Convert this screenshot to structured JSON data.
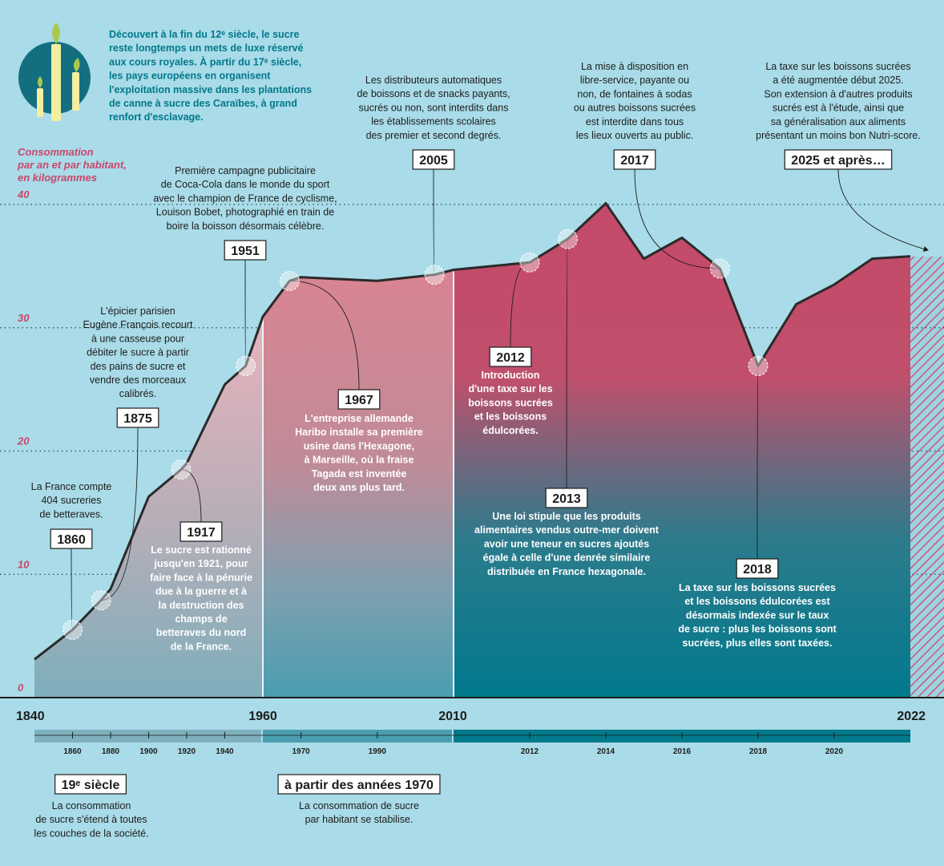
{
  "intro": [
    "Découvert à la fin du 12ᵉ siècle, le sucre",
    "reste longtemps un mets de luxe réservé",
    "aux cours royales. À partir du 17ᵉ siècle,",
    "les pays européens en organisent",
    "l'exploitation massive dans les plantations",
    "de canne à sucre des Caraïbes, à grand",
    "renfort d'esclavage."
  ],
  "chart_data": {
    "type": "line",
    "ylabel": [
      "Consommation",
      "par an et par habitant,",
      "en kilogrammes"
    ],
    "x": [
      1840,
      1860,
      1875,
      1880,
      1900,
      1917,
      1920,
      1940,
      1951,
      1960,
      1967,
      1970,
      1990,
      2005,
      2010,
      2011,
      2012,
      2013,
      2014,
      2015,
      2016,
      2017,
      2018,
      2019,
      2020,
      2021,
      2022
    ],
    "values": [
      3.1,
      5.5,
      7.9,
      8.8,
      16.3,
      18.5,
      19,
      25.4,
      26.9,
      30.9,
      33.8,
      34.1,
      33.8,
      34.3,
      34.7,
      35,
      35.3,
      37.2,
      40.1,
      35.6,
      37.3,
      34.8,
      26.9,
      31.9,
      33.5,
      35.6,
      35.8
    ],
    "color": "#2a2a2a",
    "ylim": [
      0,
      40
    ],
    "yticks": [
      0,
      10,
      20,
      30,
      40
    ],
    "grid": true,
    "xticks": [
      1840,
      1960,
      2010,
      2022
    ],
    "minor_xticks": [
      1860,
      1880,
      1900,
      1920,
      1940,
      1970,
      1990,
      2012,
      2014,
      2016,
      2018,
      2020
    ],
    "annotations": [
      {
        "year": 1860,
        "text": [
          "La France compte",
          "404 sucreries",
          "de betteraves."
        ]
      },
      {
        "year": 1875,
        "text": [
          "L'épicier parisien",
          "Eugène François recourt",
          "à une casseuse pour",
          "débiter le sucre à partir",
          "des pains de sucre et",
          "vendre des morceaux",
          "calibrés."
        ]
      },
      {
        "year": 1917,
        "text": [
          "Le sucre est rationné",
          "jusqu'en 1921, pour",
          "faire face à la pénurie",
          "due à la guerre et à",
          "la destruction des",
          "champs de",
          "betteraves du nord",
          "de la France."
        ]
      },
      {
        "year": 1951,
        "text": [
          "Première campagne publicitaire",
          "de Coca-Cola dans le monde du sport",
          "avec le champion de France de cyclisme,",
          "Louison Bobet, photographié en train de",
          "boire la boisson désormais célèbre."
        ]
      },
      {
        "year": 1967,
        "text": [
          "L'entreprise allemande",
          "Haribo installe sa première",
          "usine dans l'Hexagone,",
          "à Marseille, où la fraise",
          "Tagada est inventée",
          "deux ans plus tard."
        ]
      },
      {
        "year": 2005,
        "text": [
          "Les distributeurs automatiques",
          "de boissons et de snacks payants,",
          "sucrés ou non, sont interdits dans",
          "les établissements scolaires",
          "des premier et second degrés."
        ]
      },
      {
        "year": 2012,
        "text": [
          "Introduction",
          "d'une taxe sur les",
          "boissons sucrées",
          "et les boissons",
          "édulcorées."
        ]
      },
      {
        "year": 2013,
        "text": [
          "Une loi stipule que les produits",
          "alimentaires vendus outre-mer doivent",
          "avoir une teneur en sucres ajoutés",
          "égale à celle d'une denrée similaire",
          "distribuée en France hexagonale."
        ]
      },
      {
        "year": 2017,
        "text": [
          "La mise à disposition en",
          "libre-service, payante ou",
          "non, de fontaines à sodas",
          "ou autres boissons sucrées",
          "est interdite dans tous",
          "les lieux ouverts au public."
        ]
      },
      {
        "year": 2018,
        "text": [
          "La taxe sur les boissons sucrées",
          "et les boissons édulcorées est",
          "désormais indexée sur le taux",
          "de sucre : plus les boissons sont",
          "sucrées, plus elles sont taxées."
        ]
      },
      {
        "label": "2025 et après…",
        "text": [
          "La taxe sur les boissons sucrées",
          "a été augmentée début 2025.",
          "Son extension à d'autres produits",
          "sucrés est à l'étude, ainsi que",
          "sa généralisation aux aliments",
          "présentant un moins bon Nutri-score."
        ]
      }
    ],
    "periods": [
      {
        "label": "19ᵉ siècle",
        "text": [
          "La consommation",
          "de sucre s'étend à toutes",
          "les couches de la société."
        ]
      },
      {
        "label": "à partir des années 1970",
        "text": [
          "La consommation de sucre",
          "par habitant se stabilise."
        ]
      }
    ]
  }
}
